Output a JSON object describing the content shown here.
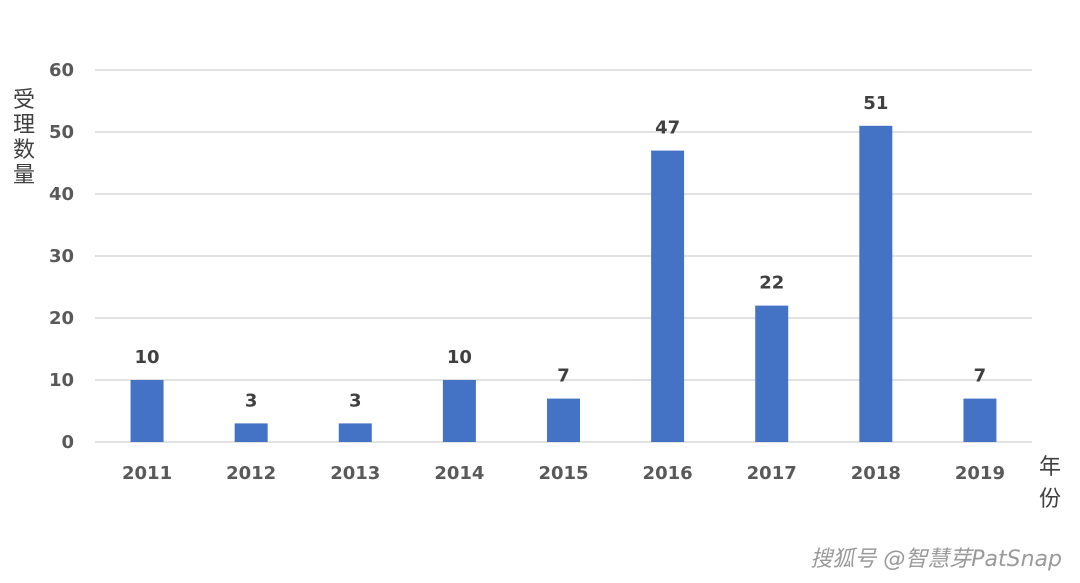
{
  "chart_data": {
    "type": "bar",
    "categories": [
      "2011",
      "2012",
      "2013",
      "2014",
      "2015",
      "2016",
      "2017",
      "2018",
      "2019"
    ],
    "values": [
      10,
      3,
      3,
      10,
      7,
      47,
      22,
      51,
      7
    ],
    "data_labels": [
      "10",
      "3",
      "3",
      "10",
      "7",
      "47",
      "22",
      "51",
      "7"
    ],
    "ylim": [
      0,
      60
    ],
    "yticks": [
      0,
      10,
      20,
      30,
      40,
      50,
      60
    ],
    "ylabel": "受理数量",
    "xlabel": "年份",
    "grid": true,
    "legend": "none",
    "bar_color": "#4472C4",
    "grid_color": "#D9D9D9"
  },
  "watermark": {
    "text": "搜狐号 @智慧芽PatSnap"
  }
}
